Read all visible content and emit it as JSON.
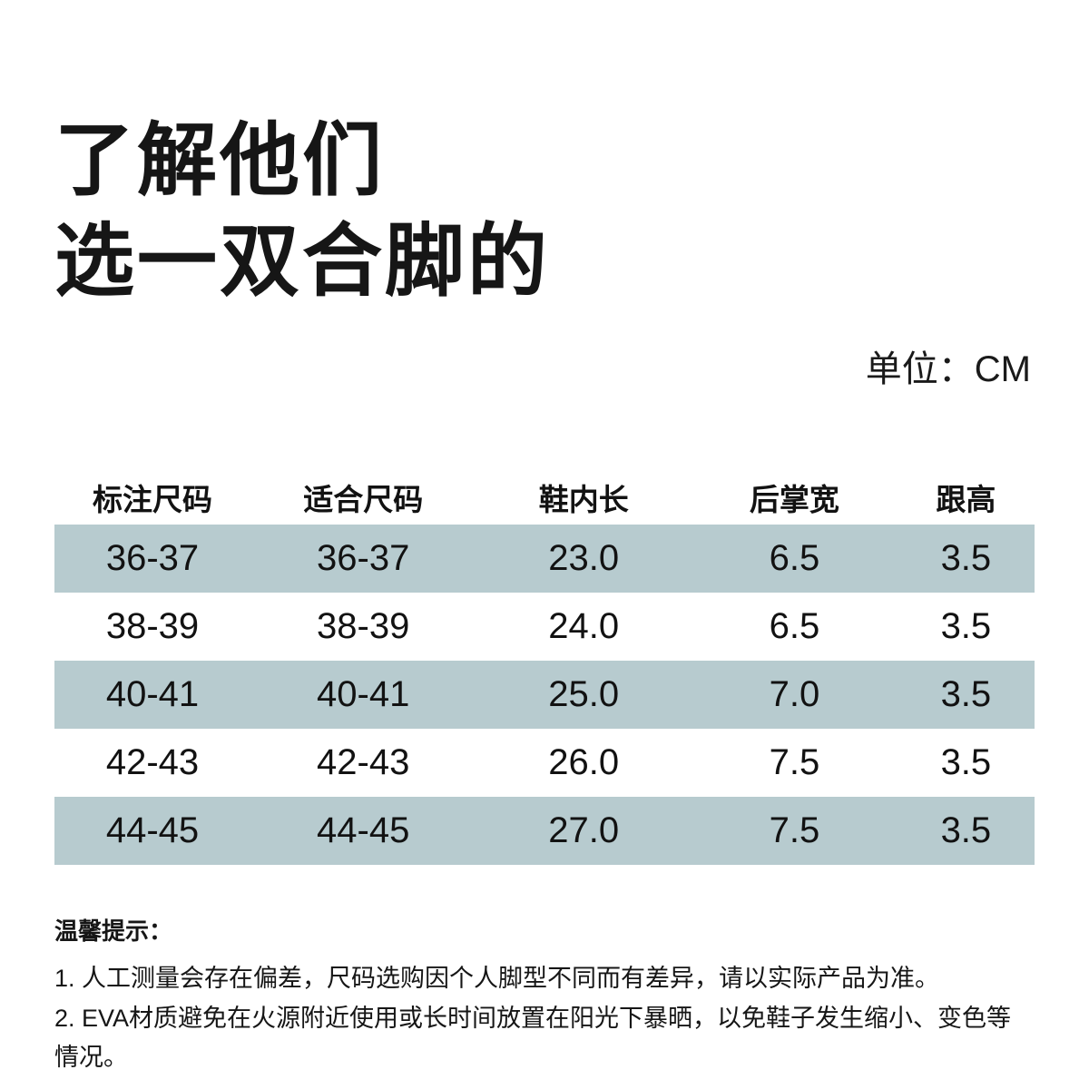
{
  "title": {
    "line1": "了解他们",
    "line2": "选一双合脚的"
  },
  "unit_label": "单位：CM",
  "colors": {
    "background": "#ffffff",
    "row_shade": "#b7cbcf",
    "text": "#141414"
  },
  "table": {
    "headers": [
      "标注尺码",
      "适合尺码",
      "鞋内长",
      "后掌宽",
      "跟高"
    ],
    "rows": [
      [
        "36-37",
        "36-37",
        "23.0",
        "6.5",
        "3.5"
      ],
      [
        "38-39",
        "38-39",
        "24.0",
        "6.5",
        "3.5"
      ],
      [
        "40-41",
        "40-41",
        "25.0",
        "7.0",
        "3.5"
      ],
      [
        "42-43",
        "42-43",
        "26.0",
        "7.5",
        "3.5"
      ],
      [
        "44-45",
        "44-45",
        "27.0",
        "7.5",
        "3.5"
      ]
    ]
  },
  "notes": {
    "title": "温馨提示：",
    "items": [
      "1. 人工测量会存在偏差，尺码选购因个人脚型不同而有差异，请以实际产品为准。",
      "2. EVA材质避免在火源附近使用或长时间放置在阳光下暴晒，以免鞋子发生缩小、变色等情况。"
    ]
  }
}
